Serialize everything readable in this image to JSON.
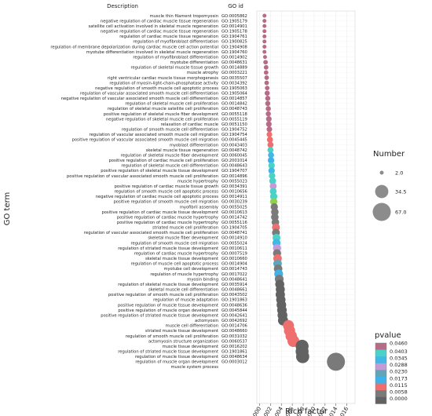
{
  "chart_data": {
    "type": "scatter",
    "title": "",
    "xlabel": "Rich factor",
    "ylabel": "GO term",
    "column_headers": {
      "description": "Description",
      "go_id": "GO id"
    },
    "xlim": [
      -0.0005,
      0.0175
    ],
    "x_ticks": [
      "0.000",
      "0.002",
      "0.004",
      "0.006",
      "0.008",
      "0.010",
      "0.012",
      "0.014",
      "0.016"
    ],
    "grid": true,
    "size_legend": {
      "title": "Number",
      "labels": [
        "2.0",
        "34.5",
        "67.0"
      ],
      "values": [
        2.0,
        34.5,
        67.0
      ]
    },
    "color_legend": {
      "title": "pvalue",
      "labels": [
        "0.0460",
        "0.0403",
        "0.0345",
        "0.0288",
        "0.0230",
        "0.0173",
        "0.0115",
        "0.0058",
        "0.0000"
      ],
      "colors": [
        "#b66b86",
        "#4bd2c7",
        "#41b8e6",
        "#c69ad6",
        "#62a5b9",
        "#3fb3e9",
        "#ef6e6e",
        "#7a7a7a",
        "#626262"
      ]
    },
    "terms": [
      {
        "desc": "muscle thin filament tropomyosin",
        "id": "GO:0005862",
        "x": 0.0009,
        "n": 2,
        "color": "#b66b86"
      },
      {
        "desc": "negative regulation of cardiac muscle tissue regeneration",
        "id": "GO:1905179",
        "x": 0.0009,
        "n": 2,
        "color": "#b66b86"
      },
      {
        "desc": "satellite cell activation involved in skeletal muscle regeneration",
        "id": "GO:0014901",
        "x": 0.0009,
        "n": 2,
        "color": "#b66b86"
      },
      {
        "desc": "negative regulation of cardiac muscle tissue regeneration",
        "id": "GO:1905178",
        "x": 0.0009,
        "n": 2,
        "color": "#b66b86"
      },
      {
        "desc": "regulation of cardiac muscle tissue regeneration",
        "id": "GO:1904761",
        "x": 0.0009,
        "n": 2,
        "color": "#b66b86"
      },
      {
        "desc": "regulation of myofibroblast differentiation",
        "id": "GO:1900825",
        "x": 0.0009,
        "n": 2,
        "color": "#b66b86"
      },
      {
        "desc": "regulation of membrane depolarization during cardiac muscle cell action potential",
        "id": "GO:1904908",
        "x": 0.0009,
        "n": 2,
        "color": "#b66b86"
      },
      {
        "desc": "myotube differentiation involved in skeletal muscle regeneration",
        "id": "GO:1904760",
        "x": 0.0009,
        "n": 2,
        "color": "#b66b86"
      },
      {
        "desc": "regulation of myofibroblast differentiation",
        "id": "GO:0014902",
        "x": 0.001,
        "n": 2,
        "color": "#b66b86"
      },
      {
        "desc": "myotube differentiation",
        "id": "GO:0048631",
        "x": 0.0011,
        "n": 3,
        "color": "#b66b86"
      },
      {
        "desc": "regulation of skeletal muscle tissue growth",
        "id": "GO:0014889",
        "x": 0.0012,
        "n": 3,
        "color": "#b66b86"
      },
      {
        "desc": "muscle atrophy",
        "id": "GO:0003221",
        "x": 0.0012,
        "n": 3,
        "color": "#b66b86"
      },
      {
        "desc": "right ventricular cardiac muscle tissue morphogenesis",
        "id": "GO:0035507",
        "x": 0.0013,
        "n": 3,
        "color": "#b66b86"
      },
      {
        "desc": "regulation of myosin-light-chain-phosphatase activity",
        "id": "GO:0034392",
        "x": 0.0013,
        "n": 3,
        "color": "#b66b86"
      },
      {
        "desc": "negative regulation of smooth muscle cell apoptotic process",
        "id": "GO:1905063",
        "x": 0.0014,
        "n": 3,
        "color": "#b66b86"
      },
      {
        "desc": "regulation of vascular associated smooth muscle cell differentiation",
        "id": "GO:1905064",
        "x": 0.0014,
        "n": 4,
        "color": "#b66b86"
      },
      {
        "desc": "negative regulation of vascular associated smooth muscle cell differentiation",
        "id": "GO:0014857",
        "x": 0.0015,
        "n": 4,
        "color": "#b66b86"
      },
      {
        "desc": "regulation of skeletal muscle cell proliferation",
        "id": "GO:0014842",
        "x": 0.0015,
        "n": 4,
        "color": "#b66b86"
      },
      {
        "desc": "regulation of skeletal muscle satellite cell proliferation",
        "id": "GO:0048743",
        "x": 0.0016,
        "n": 4,
        "color": "#b66b86"
      },
      {
        "desc": "positive regulation of skeletal muscle fiber development",
        "id": "GO:0055118",
        "x": 0.0016,
        "n": 4,
        "color": "#b66b86"
      },
      {
        "desc": "negative regulation of skeletal muscle cell proliferation",
        "id": "GO:0055119",
        "x": 0.0017,
        "n": 5,
        "color": "#b66b86"
      },
      {
        "desc": "relaxation of cardiac muscle",
        "id": "GO:0051150",
        "x": 0.0017,
        "n": 5,
        "color": "#b66b86"
      },
      {
        "desc": "regulation of smooth muscle cell differentiation",
        "id": "GO:1904752",
        "x": 0.0018,
        "n": 5,
        "color": "#b66b86"
      },
      {
        "desc": "regulation of vascular associated smooth muscle cell migration",
        "id": "GO:1904754",
        "x": 0.0018,
        "n": 5,
        "color": "#ef6e6e"
      },
      {
        "desc": "positive regulation of vascular associated smooth muscle cell migration",
        "id": "GO:0045445",
        "x": 0.0019,
        "n": 6,
        "color": "#ef6e6e"
      },
      {
        "desc": "myoblast differentiation",
        "id": "GO:0043403",
        "x": 0.002,
        "n": 6,
        "color": "#ef6e6e"
      },
      {
        "desc": "skeletal muscle tissue regeneration",
        "id": "GO:0048742",
        "x": 0.002,
        "n": 6,
        "color": "#4bd2c7"
      },
      {
        "desc": "regulation of skeletal muscle fiber development",
        "id": "GO:0060045",
        "x": 0.0021,
        "n": 6,
        "color": "#41b8e6"
      },
      {
        "desc": "positive regulation of cardiac muscle cell proliferation",
        "id": "GO:2001014",
        "x": 0.0021,
        "n": 7,
        "color": "#3fb3e9"
      },
      {
        "desc": "regulation of skeletal muscle cell differentiation",
        "id": "GO:0048643",
        "x": 0.0022,
        "n": 7,
        "color": "#4bd2c7"
      },
      {
        "desc": "positive regulation of skeletal muscle tissue development",
        "id": "GO:1904707",
        "x": 0.0022,
        "n": 7,
        "color": "#41b8e6"
      },
      {
        "desc": "positive regulation of vascular associated smooth muscle cell proliferation",
        "id": "GO:0014896",
        "x": 0.0023,
        "n": 7,
        "color": "#4bd2c7"
      },
      {
        "desc": "muscle hypertrophy",
        "id": "GO:0055023",
        "x": 0.0024,
        "n": 8,
        "color": "#4bd2c7"
      },
      {
        "desc": "positive regulation of cardiac muscle tissue growth",
        "id": "GO:0034391",
        "x": 0.0025,
        "n": 8,
        "color": "#c69ad6"
      },
      {
        "desc": "regulation of smooth muscle cell apoptotic process",
        "id": "GO:0010656",
        "x": 0.0025,
        "n": 8,
        "color": "#4bd2c7"
      },
      {
        "desc": "negative regulation of cardiac muscle cell apoptotic process",
        "id": "GO:0014911",
        "x": 0.0026,
        "n": 9,
        "color": "#4bd2c7"
      },
      {
        "desc": "positive regulation of smooth muscle cell migration",
        "id": "GO:0030239",
        "x": 0.0026,
        "n": 9,
        "color": "#8ed04f"
      },
      {
        "desc": "myofibril assembly",
        "id": "GO:0055025",
        "x": 0.0027,
        "n": 9,
        "color": "#7a7a7a"
      },
      {
        "desc": "positive regulation of cardiac muscle tissue development",
        "id": "GO:0010613",
        "x": 0.0028,
        "n": 10,
        "color": "#7a7a7a"
      },
      {
        "desc": "positive regulation of cardiac muscle hypertrophy",
        "id": "GO:0014742",
        "x": 0.0028,
        "n": 10,
        "color": "#7a7a7a"
      },
      {
        "desc": "positive regulation of cardiac muscle hypertrophy",
        "id": "GO:0055116",
        "x": 0.0029,
        "n": 10,
        "color": "#7a7a7a"
      },
      {
        "desc": "striated muscle cell proliferation",
        "id": "GO:1904705",
        "x": 0.003,
        "n": 11,
        "color": "#ef6e6e"
      },
      {
        "desc": "regulation of vascular associated smooth muscle cell proliferation",
        "id": "GO:0048741",
        "x": 0.003,
        "n": 11,
        "color": "#7a7a7a"
      },
      {
        "desc": "skeletal muscle fiber development",
        "id": "GO:0014910",
        "x": 0.0031,
        "n": 11,
        "color": "#4bd2c7"
      },
      {
        "desc": "regulation of smooth muscle cell migration",
        "id": "GO:0055024",
        "x": 0.0031,
        "n": 12,
        "color": "#41b8e6"
      },
      {
        "desc": "regulation of striated muscle tissue development",
        "id": "GO:0010611",
        "x": 0.0032,
        "n": 12,
        "color": "#c69ad6"
      },
      {
        "desc": "regulation of cardiac muscle hypertrophy",
        "id": "GO:0007519",
        "x": 0.0032,
        "n": 12,
        "color": "#7a7a7a"
      },
      {
        "desc": "skeletal muscle tissue development",
        "id": "GO:0010660",
        "x": 0.0033,
        "n": 13,
        "color": "#ef6e6e"
      },
      {
        "desc": "regulation of muscle cell apoptotic process",
        "id": "GO:0014904",
        "x": 0.0033,
        "n": 13,
        "color": "#62a5b9"
      },
      {
        "desc": "myotube cell development",
        "id": "GO:0014743",
        "x": 0.0034,
        "n": 13,
        "color": "#7a7a7a"
      },
      {
        "desc": "regulation of muscle hypertrophy",
        "id": "GO:0017022",
        "x": 0.0035,
        "n": 14,
        "color": "#3fb3e9"
      },
      {
        "desc": "myosin binding",
        "id": "GO:0048641",
        "x": 0.0036,
        "n": 14,
        "color": "#7a7a7a"
      },
      {
        "desc": "regulation of skeletal muscle tissue development",
        "id": "GO:0035914",
        "x": 0.0037,
        "n": 15,
        "color": "#626262"
      },
      {
        "desc": "skeletal muscle cell differentiation",
        "id": "GO:0048661",
        "x": 0.0038,
        "n": 15,
        "color": "#626262"
      },
      {
        "desc": "positive regulation of smooth muscle cell proliferation",
        "id": "GO:0043502",
        "x": 0.0038,
        "n": 16,
        "color": "#626262"
      },
      {
        "desc": "regulation of muscle adaptation",
        "id": "GO:1901863",
        "x": 0.0039,
        "n": 16,
        "color": "#626262"
      },
      {
        "desc": "positive regulation of muscle tissue development",
        "id": "GO:0048636",
        "x": 0.004,
        "n": 17,
        "color": "#626262"
      },
      {
        "desc": "positive regulation of muscle organ development",
        "id": "GO:0045844",
        "x": 0.0041,
        "n": 17,
        "color": "#626262"
      },
      {
        "desc": "positive regulation of striated muscle tissue development",
        "id": "GO:0042641",
        "x": 0.0042,
        "n": 18,
        "color": "#626262"
      },
      {
        "desc": "actomyosin",
        "id": "GO:0042692",
        "x": 0.0043,
        "n": 19,
        "color": "#626262"
      },
      {
        "desc": "muscle cell differentiation",
        "id": "GO:0014706",
        "x": 0.0053,
        "n": 23,
        "color": "#ef6e6e"
      },
      {
        "desc": "striated muscle tissue development",
        "id": "GO:0048660",
        "x": 0.0055,
        "n": 24,
        "color": "#ef6e6e"
      },
      {
        "desc": "regulation of smooth muscle cell proliferation",
        "id": "GO:0031032",
        "x": 0.0058,
        "n": 25,
        "color": "#ef6e6e"
      },
      {
        "desc": "actomyosin structure organization",
        "id": "GO:0060537",
        "x": 0.0062,
        "n": 27,
        "color": "#ef6e6e"
      },
      {
        "desc": "muscle tissue development",
        "id": "GO:0016202",
        "x": 0.0078,
        "n": 33,
        "color": "#626262"
      },
      {
        "desc": "regulation of striated muscle tissue development",
        "id": "GO:1901861",
        "x": 0.0078,
        "n": 33,
        "color": "#626262"
      },
      {
        "desc": "regulation of muscle tissue development",
        "id": "GO:0048634",
        "x": 0.0079,
        "n": 34,
        "color": "#626262"
      },
      {
        "desc": "regulation of muscle organ development",
        "id": "GO:0003012",
        "x": 0.014,
        "n": 67,
        "color": "#7a7a7a"
      },
      {
        "desc": "muscle system process",
        "id": "",
        "x": null,
        "n": null,
        "color": ""
      }
    ]
  }
}
